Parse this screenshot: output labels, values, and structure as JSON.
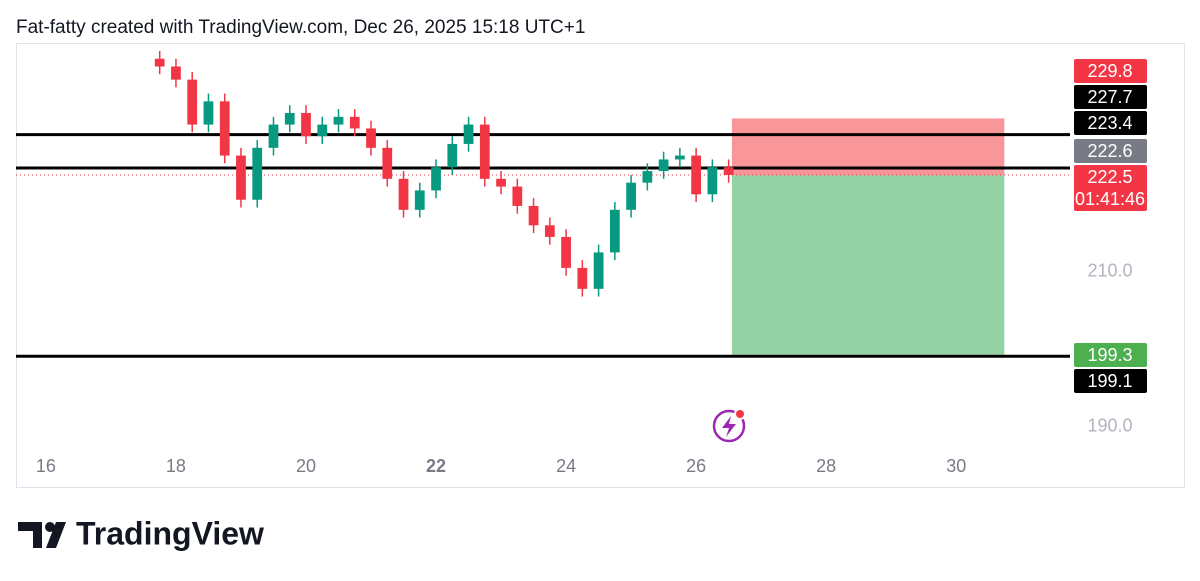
{
  "header": {
    "title": "Fat-fatty created with TradingView.com, Dec 26, 2025 15:18 UTC+1",
    "brand": "TradingView"
  },
  "chart_data": {
    "type": "candlestick",
    "x": [
      17.75,
      18,
      18.25,
      18.5,
      18.75,
      19,
      19.25,
      19.5,
      19.75,
      20,
      20.25,
      20.5,
      20.75,
      21,
      21.25,
      21.5,
      21.75,
      22,
      22.25,
      22.5,
      22.75,
      23,
      23.25,
      23.5,
      23.75,
      24,
      24.25,
      24.5,
      24.75,
      25,
      25.25,
      25.5,
      25.75,
      26,
      26.25,
      26.5
    ],
    "open": [
      237.5,
      236.5,
      234.8,
      229.0,
      232.0,
      225.0,
      219.3,
      226.0,
      229.0,
      230.5,
      227.5,
      229.0,
      230.0,
      228.5,
      226.0,
      222.0,
      218.0,
      220.5,
      223.5,
      226.5,
      229.0,
      222.0,
      221.0,
      218.5,
      216.0,
      214.5,
      210.5,
      207.8,
      212.5,
      218.0,
      221.5,
      223.0,
      224.5,
      225.0,
      220.0,
      223.5
    ],
    "high": [
      238.5,
      237.5,
      235.8,
      233.0,
      233.0,
      226.0,
      227.0,
      230.0,
      231.5,
      231.5,
      230.0,
      231.0,
      231.0,
      229.5,
      227.0,
      223.0,
      221.5,
      224.5,
      227.5,
      230.0,
      230.0,
      223.0,
      222.0,
      219.5,
      217.0,
      215.5,
      211.5,
      213.5,
      219.0,
      222.5,
      224.0,
      225.5,
      226.0,
      226.0,
      224.5,
      224.5
    ],
    "low": [
      235.5,
      233.8,
      228.0,
      228.0,
      224.0,
      218.3,
      218.3,
      225.0,
      228.0,
      226.5,
      226.5,
      228.0,
      227.5,
      225.0,
      221.0,
      217.0,
      217.0,
      219.5,
      222.5,
      225.5,
      221.0,
      220.0,
      217.5,
      215.0,
      213.5,
      209.5,
      206.8,
      206.8,
      211.5,
      217.0,
      220.5,
      222.0,
      223.5,
      219.0,
      219.0,
      221.5
    ],
    "close": [
      236.5,
      234.8,
      229.0,
      232.0,
      225.0,
      219.3,
      226.0,
      229.0,
      230.5,
      227.5,
      229.0,
      230.0,
      228.5,
      226.0,
      222.0,
      218.0,
      220.5,
      223.5,
      226.5,
      229.0,
      222.0,
      221.0,
      218.5,
      216.0,
      214.5,
      210.5,
      207.8,
      212.5,
      218.0,
      221.5,
      223.0,
      224.5,
      225.0,
      220.0,
      223.5,
      222.5
    ],
    "up_color": "#089981",
    "down_color": "#f23645",
    "xlim": [
      15.54,
      31.75
    ],
    "ylim": [
      187.0,
      239.4
    ],
    "xticks": [
      16,
      18,
      20,
      22,
      24,
      26,
      28,
      30
    ],
    "yticks": [
      {
        "value": 190,
        "label": "190.0"
      },
      {
        "value": 210,
        "label": "210.0"
      }
    ],
    "lines": [
      227.7,
      223.4,
      199.1
    ],
    "position": {
      "stop": 229.8,
      "entry": 222.5,
      "target": 199.3,
      "start": 26.55,
      "end": 30.74
    },
    "alert_price": 222.6,
    "current_price": 222.5,
    "countdown": "01:41:46"
  }
}
